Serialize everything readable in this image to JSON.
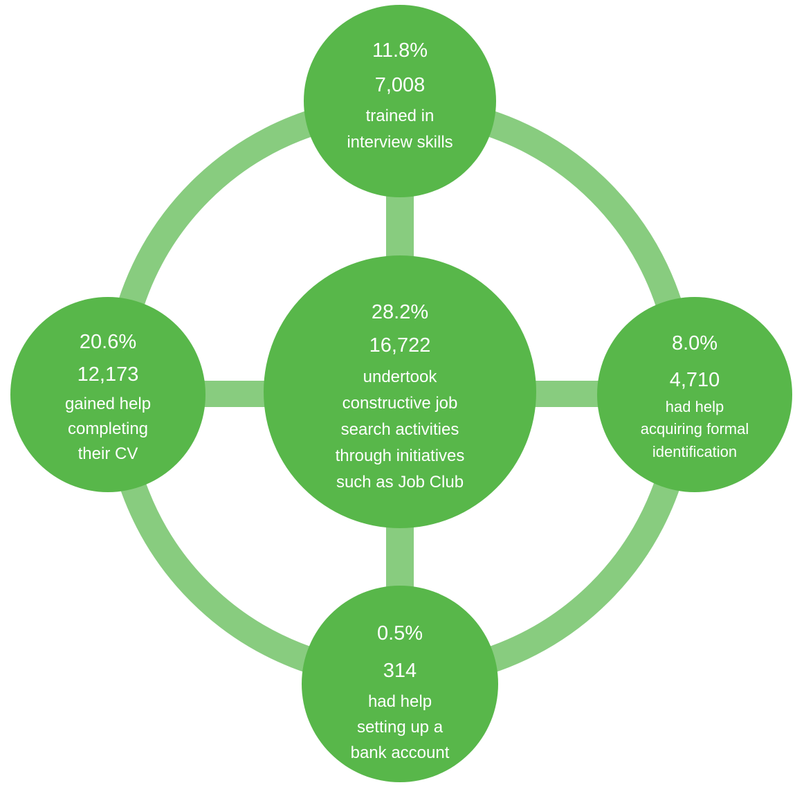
{
  "colors": {
    "node_fill": "#58b74a",
    "connector": "#88cc7f",
    "text": "#ffffff",
    "background": "#ffffff"
  },
  "center": {
    "percent": "28.2%",
    "count": "16,722",
    "lines": [
      "undertook",
      "constructive job",
      "search activities",
      "through initiatives",
      "such as Job Club"
    ]
  },
  "top": {
    "percent": "11.8%",
    "count": "7,008",
    "lines": [
      "trained in",
      "interview skills"
    ]
  },
  "left": {
    "percent": "20.6%",
    "count": "12,173",
    "lines": [
      "gained help",
      "completing",
      "their CV"
    ]
  },
  "right": {
    "percent": "8.0%",
    "count": "4,710",
    "lines": [
      "had help",
      "acquiring formal",
      "identification"
    ]
  },
  "bottom": {
    "percent": "0.5%",
    "count": "314",
    "lines": [
      "had help",
      "setting up a",
      "bank account"
    ]
  }
}
